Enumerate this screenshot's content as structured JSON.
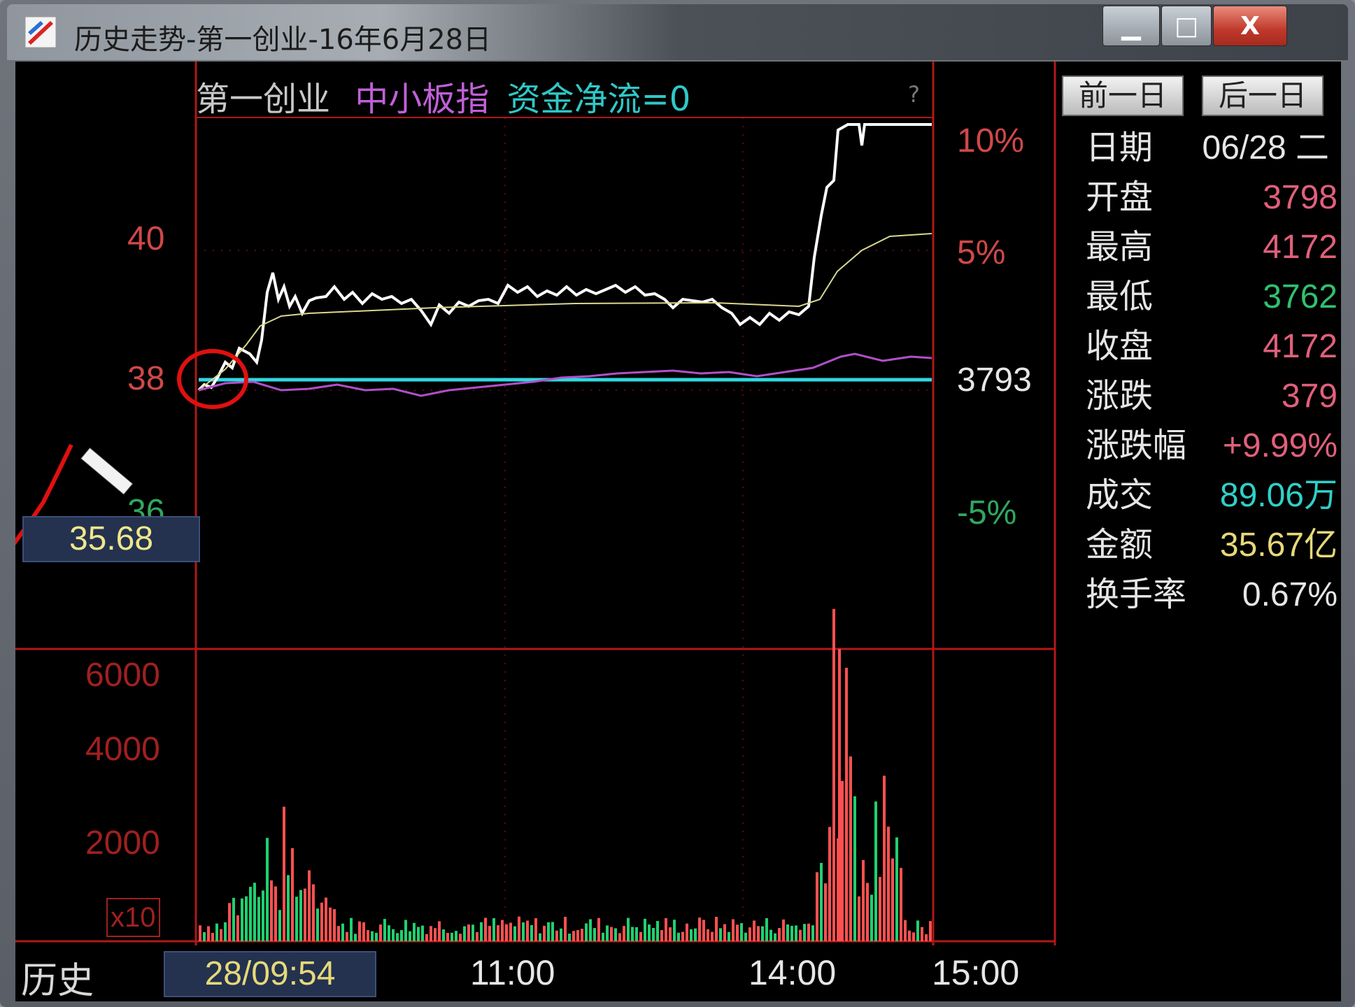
{
  "window": {
    "title": "历史走势-第一创业-16年6月28日",
    "minimize_symbol": "▁",
    "maximize_symbol": "□",
    "close_symbol": "X"
  },
  "header": {
    "stock_name": "第一创业",
    "index_name": "中小板指",
    "fund_flow": "资金净流=0",
    "help": "?"
  },
  "nav": {
    "prev_day": "前一日",
    "next_day": "后一日"
  },
  "price_axis": {
    "left_labels": [
      "40",
      "38",
      "36"
    ],
    "right_labels": [
      "10%",
      "5%",
      "3793",
      "-5%"
    ],
    "hover_price": "35.68"
  },
  "volume_axis": {
    "labels": [
      "6000",
      "4000",
      "2000"
    ],
    "unit": "x10"
  },
  "info": {
    "date_label": "日期",
    "date_value": "06/28 二",
    "rows": [
      {
        "label": "开盘",
        "value": "3798",
        "color": "#e0607a"
      },
      {
        "label": "最高",
        "value": "4172",
        "color": "#e0607a"
      },
      {
        "label": "最低",
        "value": "3762",
        "color": "#30c070"
      },
      {
        "label": "收盘",
        "value": "4172",
        "color": "#e0607a"
      },
      {
        "label": "涨跌",
        "value": "379",
        "color": "#e0607a"
      },
      {
        "label": "涨跌幅",
        "value": "+9.99%",
        "color": "#e0607a"
      },
      {
        "label": "成交",
        "value": "89.06万",
        "color": "#30d0c8"
      },
      {
        "label": "金额",
        "value": "35.67亿",
        "color": "#e6d97a"
      },
      {
        "label": "换手率",
        "value": "0.67%",
        "color": "#e6e6e6"
      }
    ]
  },
  "bottom": {
    "history": "历史",
    "cursor_time": "28/09:54",
    "times": [
      "11:00",
      "14:00",
      "15:00"
    ]
  },
  "colors": {
    "grid": "#b01818",
    "price_line": "#ffffff",
    "avg_line": "#d8d890",
    "index_line": "#b050c8",
    "prev_close": "#30d8e0",
    "vol_up": "#ff5050",
    "vol_down": "#20d070",
    "annotation": "#e01010"
  }
}
